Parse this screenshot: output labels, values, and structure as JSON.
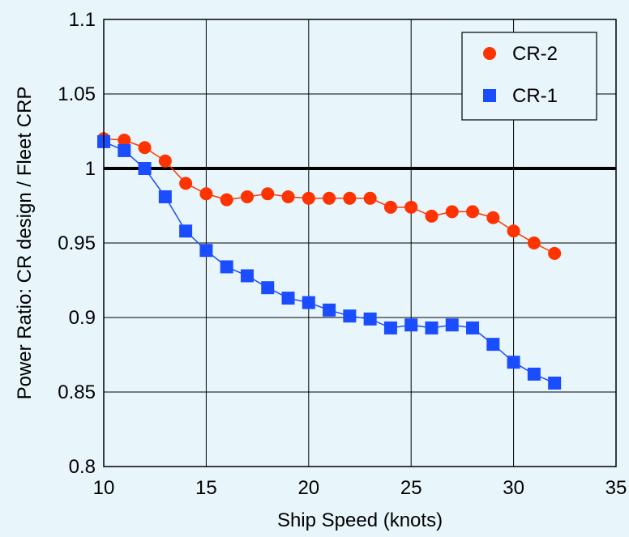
{
  "chart_data": {
    "type": "line",
    "title": "",
    "xlabel": "Ship Speed (knots)",
    "ylabel": "Power Ratio: CR design / Fleet CRP",
    "xlim": [
      10,
      35
    ],
    "ylim": [
      0.8,
      1.1
    ],
    "xticks": [
      10,
      15,
      20,
      25,
      30,
      35
    ],
    "yticks": [
      0.8,
      0.85,
      0.9,
      0.95,
      1,
      1.05,
      1.1
    ],
    "xtick_labels": [
      "10",
      "15",
      "20",
      "25",
      "30",
      "35"
    ],
    "ytick_labels": [
      "0.8",
      "0.85",
      "0.9",
      "0.95",
      "1",
      "1.05",
      "1.1"
    ],
    "grid": true,
    "legend_position": "top-right",
    "reference_line": {
      "y": 1.0,
      "color": "#000000"
    },
    "series": [
      {
        "name": "CR-2",
        "marker": "circle",
        "color": "#ff3300",
        "x": [
          10,
          11,
          12,
          13,
          14,
          15,
          16,
          17,
          18,
          19,
          20,
          21,
          22,
          23,
          24,
          25,
          26,
          27,
          28,
          29,
          30,
          31,
          32
        ],
        "y": [
          1.02,
          1.019,
          1.014,
          1.005,
          0.99,
          0.983,
          0.979,
          0.981,
          0.983,
          0.981,
          0.98,
          0.98,
          0.98,
          0.98,
          0.974,
          0.974,
          0.968,
          0.971,
          0.971,
          0.967,
          0.958,
          0.95,
          0.943
        ]
      },
      {
        "name": "CR-1",
        "marker": "square",
        "color": "#1a4dff",
        "x": [
          10,
          11,
          12,
          13,
          14,
          15,
          16,
          17,
          18,
          19,
          20,
          21,
          22,
          23,
          24,
          25,
          26,
          27,
          28,
          29,
          30,
          31,
          32
        ],
        "y": [
          1.018,
          1.012,
          1.0,
          0.981,
          0.958,
          0.945,
          0.934,
          0.928,
          0.92,
          0.913,
          0.91,
          0.905,
          0.901,
          0.899,
          0.893,
          0.895,
          0.893,
          0.895,
          0.893,
          0.882,
          0.87,
          0.862,
          0.856
        ]
      }
    ]
  }
}
